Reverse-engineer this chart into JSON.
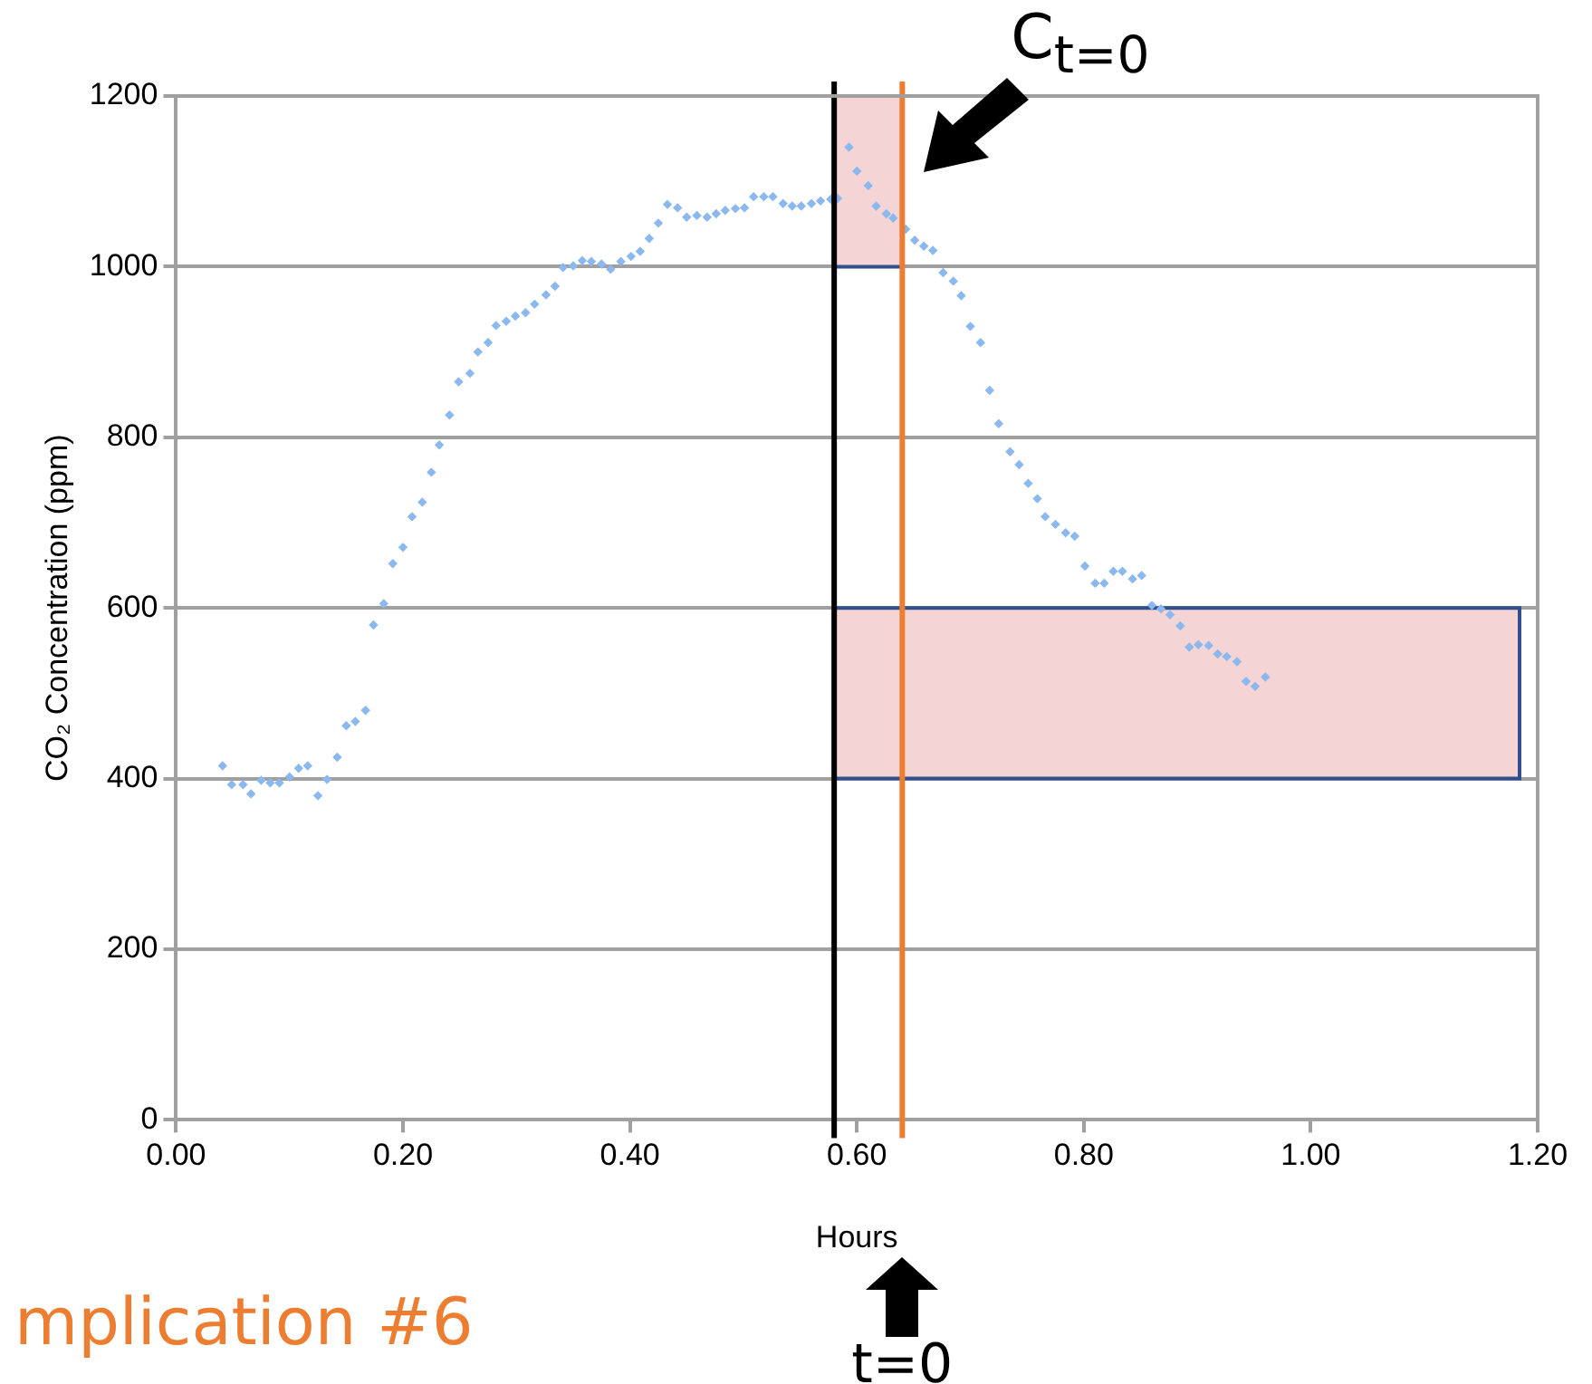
{
  "chart_data": {
    "type": "scatter",
    "xlabel": "Hours",
    "ylabel": "CO₂ Concentration (ppm)",
    "xlim": [
      0,
      1.2
    ],
    "xticks": [
      {
        "value": 0,
        "label": "0.00"
      },
      {
        "value": 0.2,
        "label": "0.20"
      },
      {
        "value": 0.4,
        "label": "0.40"
      },
      {
        "value": 0.6,
        "label": "0.60"
      },
      {
        "value": 0.8,
        "label": "0.80"
      },
      {
        "value": 1,
        "label": "1.00"
      },
      {
        "value": 1.2,
        "label": "1.20"
      }
    ],
    "ylim": [
      0,
      1200
    ],
    "yticks": [
      0,
      200,
      400,
      600,
      800,
      1000,
      1200
    ],
    "grid": "y",
    "marker": "diamond",
    "legend": false,
    "series": [
      {
        "color": "#8ab8ef",
        "x": [
          0.041,
          0.049,
          0.059,
          0.066,
          0.075,
          0.083,
          0.091,
          0.1,
          0.108,
          0.116,
          0.125,
          0.133,
          0.142,
          0.15,
          0.158,
          0.167,
          0.174,
          0.183,
          0.191,
          0.2,
          0.208,
          0.217,
          0.225,
          0.232,
          0.241,
          0.249,
          0.259,
          0.266,
          0.275,
          0.282,
          0.291,
          0.299,
          0.308,
          0.316,
          0.326,
          0.334,
          0.341,
          0.35,
          0.358,
          0.366,
          0.375,
          0.383,
          0.392,
          0.401,
          0.409,
          0.417,
          0.425,
          0.433,
          0.442,
          0.45,
          0.459,
          0.468,
          0.476,
          0.484,
          0.493,
          0.501,
          0.509,
          0.518,
          0.526,
          0.535,
          0.543,
          0.551,
          0.56,
          0.568,
          0.577,
          0.583,
          0.593,
          0.6,
          0.61,
          0.617,
          0.626,
          0.632,
          0.643,
          0.651,
          0.659,
          0.667,
          0.676,
          0.685,
          0.692,
          0.7,
          0.709,
          0.717,
          0.725,
          0.735,
          0.743,
          0.751,
          0.759,
          0.766,
          0.775,
          0.784,
          0.792,
          0.801,
          0.81,
          0.818,
          0.826,
          0.834,
          0.843,
          0.851,
          0.86,
          0.868,
          0.876,
          0.885,
          0.893,
          0.901,
          0.91,
          0.918,
          0.926,
          0.935,
          0.943,
          0.951,
          0.96
        ],
        "values": [
          415,
          393,
          393,
          382,
          398,
          395,
          395,
          402,
          412,
          415,
          380,
          399,
          425,
          462,
          467,
          480,
          580,
          605,
          652,
          671,
          707,
          724,
          759,
          791,
          826,
          865,
          875,
          900,
          911,
          931,
          936,
          942,
          946,
          956,
          967,
          977,
          999,
          1001,
          1007,
          1006,
          1003,
          997,
          1006,
          1012,
          1018,
          1033,
          1051,
          1073,
          1069,
          1058,
          1060,
          1058,
          1062,
          1066,
          1068,
          1069,
          1082,
          1082,
          1082,
          1074,
          1071,
          1071,
          1074,
          1077,
          1079,
          1080,
          1140,
          1112,
          1095,
          1071,
          1062,
          1057,
          1044,
          1031,
          1024,
          1019,
          993,
          983,
          966,
          930,
          911,
          855,
          816,
          783,
          768,
          746,
          728,
          707,
          698,
          688,
          684,
          649,
          629,
          629,
          643,
          643,
          634,
          638,
          603,
          599,
          592,
          579,
          554,
          557,
          556,
          546,
          543,
          537,
          514,
          508,
          519
        ]
      }
    ],
    "ref_lines": [
      {
        "axis": "x",
        "value": 0.58,
        "color": "#000000"
      },
      {
        "axis": "x",
        "value": 0.64,
        "color": "#ed7d31"
      }
    ],
    "bands": [
      {
        "axis": "y",
        "from": 1000,
        "to": 1200,
        "color": "#f4d4d4"
      },
      {
        "axis": "y",
        "from": 400,
        "to": 600,
        "color": "#f4d4d4"
      }
    ],
    "annotations": [
      "C$_{t=0}$",
      "t=0",
      "mplication #6"
    ]
  }
}
